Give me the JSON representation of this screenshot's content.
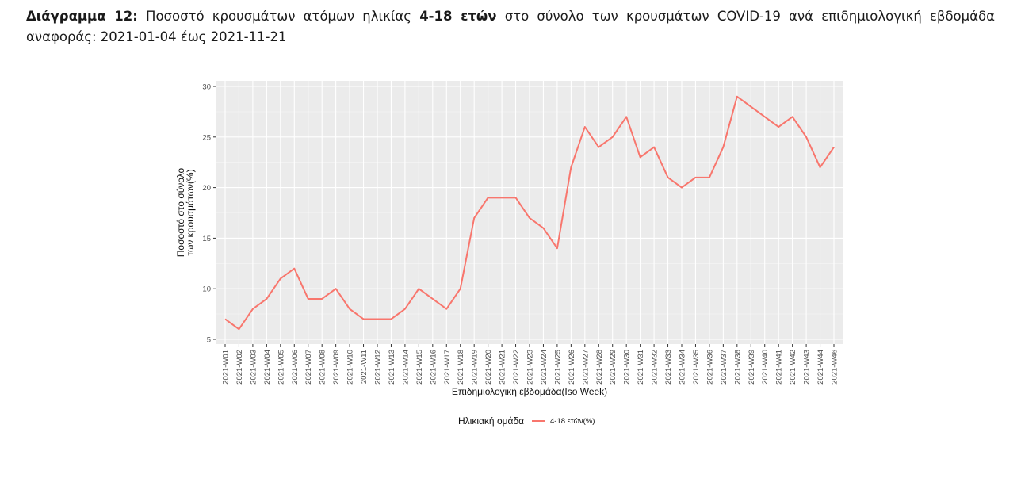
{
  "caption": {
    "label": "Διάγραμμα 12:",
    "text_1": "Ποσοστό κρουσμάτων ατόμων ηλικίας",
    "bold_1": "4-18 ετών",
    "text_2": "στο σύνολο των κρουσμάτων COVID-19 ανά επιδημιολογική εβδομάδα αναφοράς: 2021-01-04 έως 2021-11-21"
  },
  "chart_data": {
    "type": "line",
    "categories": [
      "2021-W01",
      "2021-W02",
      "2021-W03",
      "2021-W04",
      "2021-W05",
      "2021-W06",
      "2021-W07",
      "2021-W08",
      "2021-W09",
      "2021-W10",
      "2021-W11",
      "2021-W12",
      "2021-W13",
      "2021-W14",
      "2021-W15",
      "2021-W16",
      "2021-W17",
      "2021-W18",
      "2021-W19",
      "2021-W20",
      "2021-W21",
      "2021-W22",
      "2021-W23",
      "2021-W24",
      "2021-W25",
      "2021-W26",
      "2021-W27",
      "2021-W28",
      "2021-W29",
      "2021-W30",
      "2021-W31",
      "2021-W32",
      "2021-W33",
      "2021-W34",
      "2021-W35",
      "2021-W36",
      "2021-W37",
      "2021-W38",
      "2021-W39",
      "2021-W40",
      "2021-W41",
      "2021-W42",
      "2021-W43",
      "2021-W44",
      "2021-W46"
    ],
    "series": [
      {
        "name": "4-18 ετών(%)",
        "color": "#F8766D",
        "values": [
          7,
          6,
          8,
          9,
          11,
          12,
          9,
          9,
          10,
          8,
          7,
          7,
          7,
          8,
          10,
          9,
          8,
          10,
          17,
          19,
          19,
          19,
          17,
          16,
          14,
          22,
          26,
          24,
          25,
          27,
          23,
          24,
          21,
          20,
          21,
          21,
          24,
          29,
          28,
          27,
          26,
          27,
          25,
          22,
          24
        ]
      }
    ],
    "xlabel": "Επιδημιολογική εβδομάδα(Iso Week)",
    "ylabel_lines": [
      "Ποσοστό στο σύνολο",
      "των κρουσμάτων(%)"
    ],
    "ylim": [
      5,
      30
    ],
    "yticks": [
      5,
      10,
      15,
      20,
      25,
      30
    ],
    "legend_title": "Ηλικιακή ομάδα",
    "legend_position": "bottom",
    "grid": true,
    "panel_color": "#EBEBEB"
  }
}
